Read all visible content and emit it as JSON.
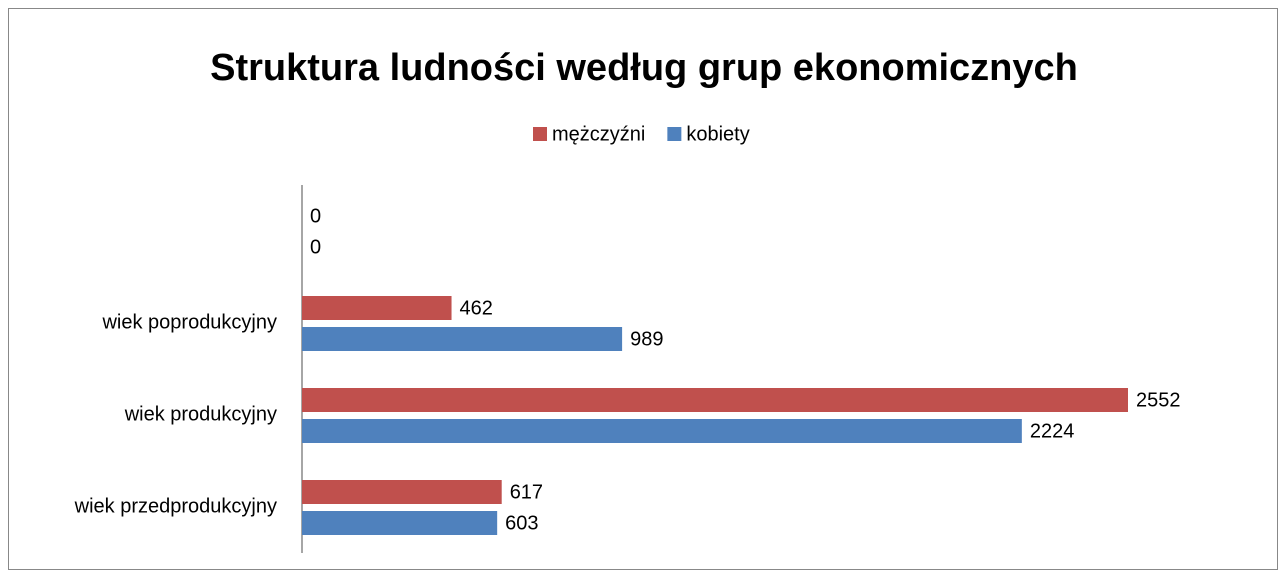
{
  "chart_data": {
    "type": "bar",
    "orientation": "horizontal",
    "title": "Struktura ludności według grup ekonomicznych",
    "categories": [
      "wiek przedprodukcyjny",
      "wiek produkcyjny",
      "wiek poprodukcyjny",
      null
    ],
    "series": [
      {
        "name": "mężczyźni",
        "color": "#c0504d",
        "values": [
          617,
          2552,
          462,
          0
        ]
      },
      {
        "name": "kobiety",
        "color": "#4f81bd",
        "values": [
          603,
          2224,
          989,
          0
        ]
      }
    ],
    "legend": "top"
  }
}
